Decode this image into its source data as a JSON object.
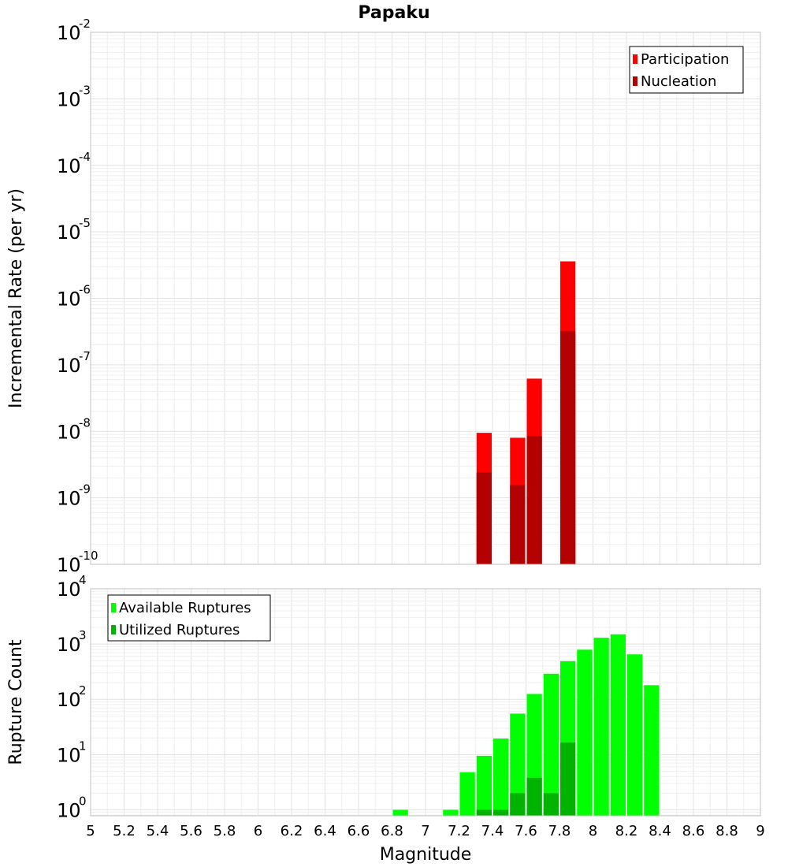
{
  "chart_data": [
    {
      "type": "bar",
      "title": "Papaku",
      "ylabel": "Incremental Rate (per yr)",
      "xlabel": "",
      "y_scale": "log",
      "ylim": [
        1e-10,
        0.01
      ],
      "xlim": [
        5,
        9
      ],
      "bar_width": 0.1,
      "grid": true,
      "legend_position": "top-right",
      "y_ticks": [
        {
          "base": "10",
          "exp": "-10"
        },
        {
          "base": "10",
          "exp": "-9"
        },
        {
          "base": "10",
          "exp": "-8"
        },
        {
          "base": "10",
          "exp": "-7"
        },
        {
          "base": "10",
          "exp": "-6"
        },
        {
          "base": "10",
          "exp": "-5"
        },
        {
          "base": "10",
          "exp": "-4"
        },
        {
          "base": "10",
          "exp": "-3"
        },
        {
          "base": "10",
          "exp": "-2"
        }
      ],
      "series": [
        {
          "name": "Participation",
          "color": "#ff0000",
          "x": [
            7.35,
            7.55,
            7.65,
            7.85
          ],
          "values": [
            9.5e-09,
            8e-09,
            6.2e-08,
            3.6e-06
          ]
        },
        {
          "name": "Nucleation",
          "color": "#b30000",
          "x": [
            7.35,
            7.55,
            7.65,
            7.85
          ],
          "values": [
            2.4e-09,
            1.55e-09,
            8.5e-09,
            3.2e-07
          ]
        }
      ]
    },
    {
      "type": "bar",
      "title": "",
      "ylabel": "Rupture Count",
      "xlabel": "Magnitude",
      "y_scale": "log",
      "ylim": [
        0.78,
        10000
      ],
      "xlim": [
        5,
        9
      ],
      "bar_width": 0.1,
      "grid": true,
      "legend_position": "top-left",
      "x_ticks": [
        "5",
        "5.2",
        "5.4",
        "5.6",
        "5.8",
        "6",
        "6.2",
        "6.4",
        "6.6",
        "6.8",
        "7",
        "7.2",
        "7.4",
        "7.6",
        "7.8",
        "8",
        "8.2",
        "8.4",
        "8.6",
        "8.8",
        "9"
      ],
      "y_ticks": [
        {
          "base": "10",
          "exp": "0"
        },
        {
          "base": "10",
          "exp": "1"
        },
        {
          "base": "10",
          "exp": "2"
        },
        {
          "base": "10",
          "exp": "3"
        },
        {
          "base": "10",
          "exp": "4"
        }
      ],
      "series": [
        {
          "name": "Available Ruptures",
          "color": "#00ff00",
          "x": [
            6.85,
            7.15,
            7.25,
            7.35,
            7.45,
            7.55,
            7.65,
            7.75,
            7.85,
            7.95,
            8.05,
            8.15,
            8.25,
            8.35
          ],
          "values": [
            1,
            1,
            4.8,
            9.5,
            19.5,
            55,
            125,
            290,
            490,
            790,
            1300,
            1500,
            650,
            180
          ]
        },
        {
          "name": "Utilized Ruptures",
          "color": "#00b300",
          "x": [
            7.35,
            7.45,
            7.55,
            7.65,
            7.75,
            7.85
          ],
          "values": [
            1,
            1,
            2,
            3.8,
            2,
            16.5
          ]
        }
      ]
    }
  ]
}
